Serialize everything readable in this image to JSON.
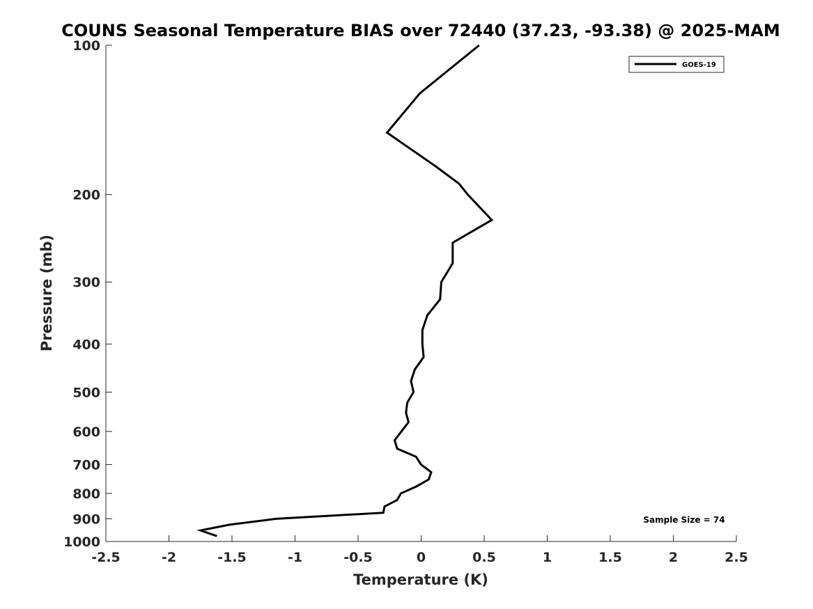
{
  "chart_data": {
    "type": "line",
    "title": "COUNS Seasonal Temperature BIAS over 72440 (37.23, -93.38) @ 2025-MAM",
    "xlabel": "Temperature (K)",
    "ylabel": "Pressure (mb)",
    "xlim": [
      -2.5,
      2.5
    ],
    "ylim": [
      100,
      1000
    ],
    "y_scale": "log",
    "y_reversed": true,
    "x_ticks": [
      -2.5,
      -2,
      -1.5,
      -1,
      -0.5,
      0,
      0.5,
      1,
      1.5,
      2,
      2.5
    ],
    "x_tick_labels": [
      "-2.5",
      "-2",
      "-1.5",
      "-1",
      "-0.5",
      "0",
      "0.5",
      "1",
      "1.5",
      "2",
      "2.5"
    ],
    "y_ticks": [
      100,
      200,
      300,
      400,
      500,
      600,
      700,
      800,
      900,
      1000
    ],
    "y_tick_labels": [
      "100",
      "200",
      "300",
      "400",
      "500",
      "600",
      "700",
      "800",
      "900",
      "1000"
    ],
    "grid": false,
    "legend": {
      "placement": "top-right",
      "entries": [
        "GOES-19"
      ]
    },
    "annotation": "Sample Size = 74",
    "series": [
      {
        "name": "GOES-19",
        "color": "#000000",
        "points": [
          {
            "x": 0.46,
            "p": 100
          },
          {
            "x": -0.01,
            "p": 125
          },
          {
            "x": -0.27,
            "p": 150
          },
          {
            "x": 0.11,
            "p": 175
          },
          {
            "x": 0.3,
            "p": 190
          },
          {
            "x": 0.37,
            "p": 200
          },
          {
            "x": 0.56,
            "p": 225
          },
          {
            "x": 0.25,
            "p": 250
          },
          {
            "x": 0.25,
            "p": 275
          },
          {
            "x": 0.16,
            "p": 300
          },
          {
            "x": 0.15,
            "p": 325
          },
          {
            "x": 0.05,
            "p": 350
          },
          {
            "x": 0.01,
            "p": 375
          },
          {
            "x": 0.01,
            "p": 400
          },
          {
            "x": 0.02,
            "p": 425
          },
          {
            "x": -0.05,
            "p": 450
          },
          {
            "x": -0.08,
            "p": 475
          },
          {
            "x": -0.06,
            "p": 500
          },
          {
            "x": -0.11,
            "p": 525
          },
          {
            "x": -0.12,
            "p": 550
          },
          {
            "x": -0.1,
            "p": 575
          },
          {
            "x": -0.21,
            "p": 625
          },
          {
            "x": -0.19,
            "p": 650
          },
          {
            "x": -0.04,
            "p": 675
          },
          {
            "x": 0.0,
            "p": 700
          },
          {
            "x": 0.08,
            "p": 725
          },
          {
            "x": 0.06,
            "p": 750
          },
          {
            "x": -0.04,
            "p": 775
          },
          {
            "x": -0.16,
            "p": 800
          },
          {
            "x": -0.19,
            "p": 825
          },
          {
            "x": -0.29,
            "p": 850
          },
          {
            "x": -0.3,
            "p": 875
          },
          {
            "x": -1.15,
            "p": 900
          },
          {
            "x": -1.52,
            "p": 925
          },
          {
            "x": -1.75,
            "p": 950
          },
          {
            "x": -1.62,
            "p": 975
          }
        ]
      }
    ]
  }
}
